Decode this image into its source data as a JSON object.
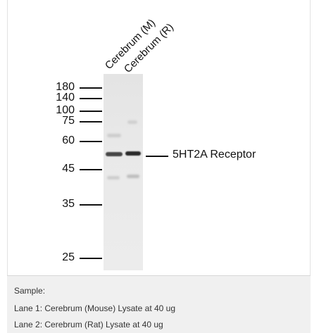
{
  "blot": {
    "lanes": [
      "Cerebrum (M)",
      "Cerebrum (R)"
    ],
    "markers": [
      "180",
      "140",
      "100",
      "75",
      "60",
      "45",
      "35",
      "25"
    ],
    "target_label": "5HT2A Receptor"
  },
  "sample": {
    "heading": "Sample:",
    "lane1": "Lane 1: Cerebrum (Mouse) Lysate at 40 ug",
    "lane2": "Lane 2: Cerebrum (Rat) Lysate at 40 ug"
  }
}
